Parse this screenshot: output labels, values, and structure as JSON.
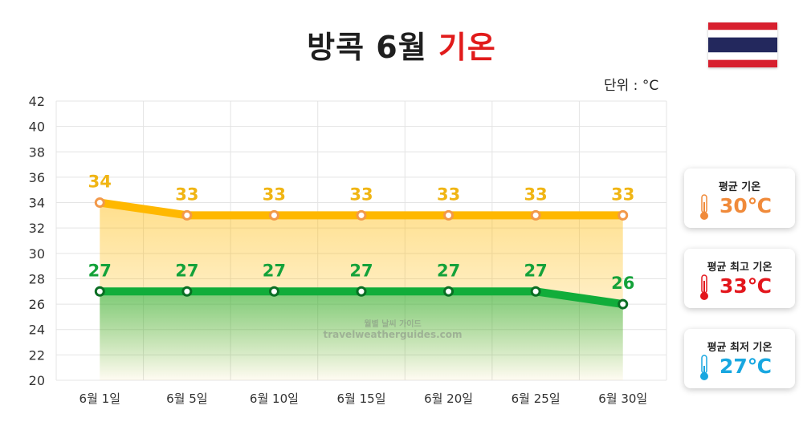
{
  "title": {
    "main": "방콕 6월 ",
    "accent": "기온"
  },
  "unit_label": "단위 : °C",
  "watermark": {
    "line1": "월별 날씨 가이드",
    "line2": "travelweatherguides.com"
  },
  "colors": {
    "high": "#ffb800",
    "high_marker": "#f2994a",
    "low": "#11ad3a",
    "low_dark": "#0a6e23",
    "avg": "#f08a3a",
    "max": "#e3161c",
    "min": "#18a7e0",
    "flag_red": "#d71f2e",
    "flag_white": "#ffffff",
    "flag_blue": "#23285d"
  },
  "cards": [
    {
      "label": "평균 기온",
      "value": "30℃",
      "color": "#f08a3a",
      "icon": "thermometer-orange-icon"
    },
    {
      "label": "평균 최고 기온",
      "value": "33℃",
      "color": "#e3161c",
      "icon": "thermometer-red-icon"
    },
    {
      "label": "평균 최저 기온",
      "value": "27℃",
      "color": "#18a7e0",
      "icon": "thermometer-blue-icon"
    }
  ],
  "chart_data": {
    "type": "line",
    "categories": [
      "6월 1일",
      "6월 5일",
      "6월 10일",
      "6월 15일",
      "6월 20일",
      "6월 25일",
      "6월 30일"
    ],
    "series": [
      {
        "values": [
          34,
          33,
          33,
          33,
          33,
          33,
          33
        ]
      },
      {
        "values": [
          27,
          27,
          27,
          27,
          27,
          27,
          26
        ]
      }
    ],
    "ylim": [
      20,
      42
    ],
    "yticks": [
      20,
      22,
      24,
      26,
      28,
      30,
      32,
      34,
      36,
      38,
      40,
      42
    ],
    "grid": true,
    "fill_under": true
  }
}
